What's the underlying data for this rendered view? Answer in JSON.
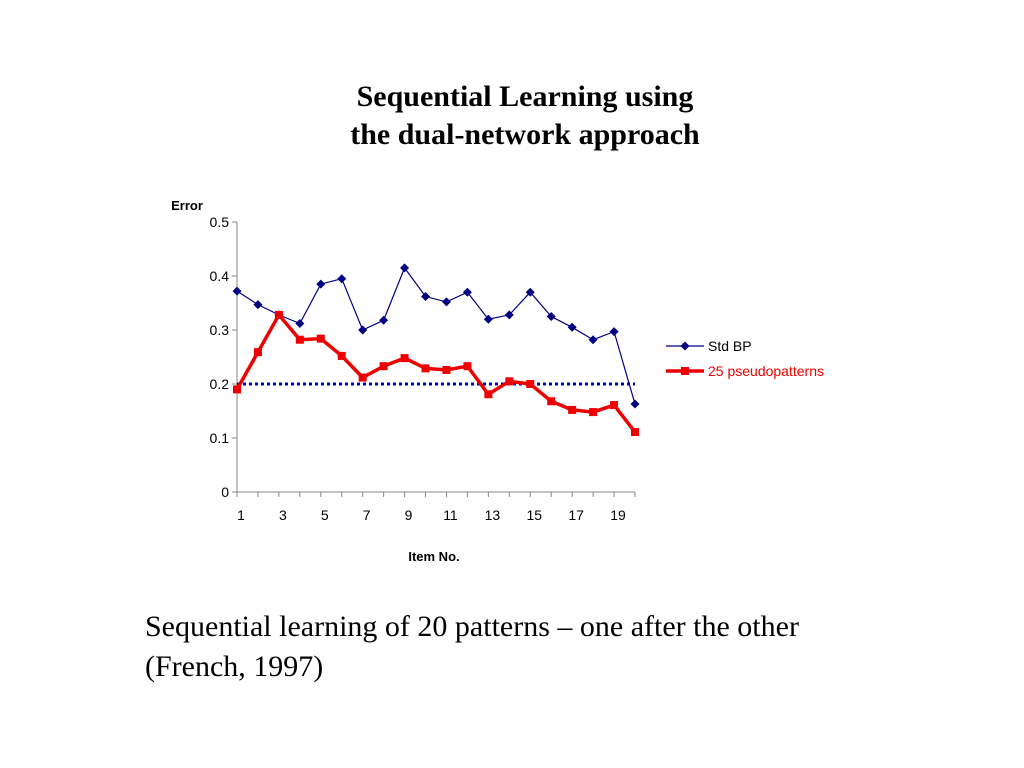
{
  "slide": {
    "title_line1": "Sequential Learning using",
    "title_line2": "the dual-network approach",
    "caption_line1": "Sequential learning of 20 patterns – one after the other",
    "caption_line2": "(French, 1997)"
  },
  "chart_data": {
    "type": "line",
    "ylabel": "Error",
    "xlabel": "Item No.",
    "ylim": [
      0,
      0.5
    ],
    "yticks": [
      0,
      0.1,
      0.2,
      0.3,
      0.4,
      0.5
    ],
    "ytick_labels": [
      "0",
      "0.1",
      "0.2",
      "0.3",
      "0.4",
      "0.5"
    ],
    "x": [
      1,
      2,
      3,
      4,
      5,
      6,
      7,
      8,
      9,
      10,
      11,
      12,
      13,
      14,
      15,
      16,
      17,
      18,
      19,
      20
    ],
    "xtick_labels": [
      "1",
      "3",
      "5",
      "7",
      "9",
      "11",
      "13",
      "15",
      "17",
      "19"
    ],
    "legend_position": "right",
    "grid": false,
    "series": [
      {
        "name": "Std BP",
        "color": "#000080",
        "marker": "diamond",
        "values": [
          0.372,
          0.347,
          0.328,
          0.312,
          0.385,
          0.395,
          0.3,
          0.318,
          0.415,
          0.362,
          0.352,
          0.37,
          0.32,
          0.328,
          0.37,
          0.325,
          0.305,
          0.282,
          0.297,
          0.163
        ]
      },
      {
        "name": "25 pseudopatterns",
        "color": "#ee0000",
        "marker": "square",
        "values": [
          0.19,
          0.259,
          0.328,
          0.282,
          0.284,
          0.252,
          0.212,
          0.233,
          0.248,
          0.229,
          0.226,
          0.233,
          0.181,
          0.205,
          0.2,
          0.168,
          0.152,
          0.148,
          0.161,
          0.111
        ]
      }
    ],
    "reference_line": {
      "y": 0.2,
      "color": "#0000cc",
      "style": "dotted"
    }
  }
}
